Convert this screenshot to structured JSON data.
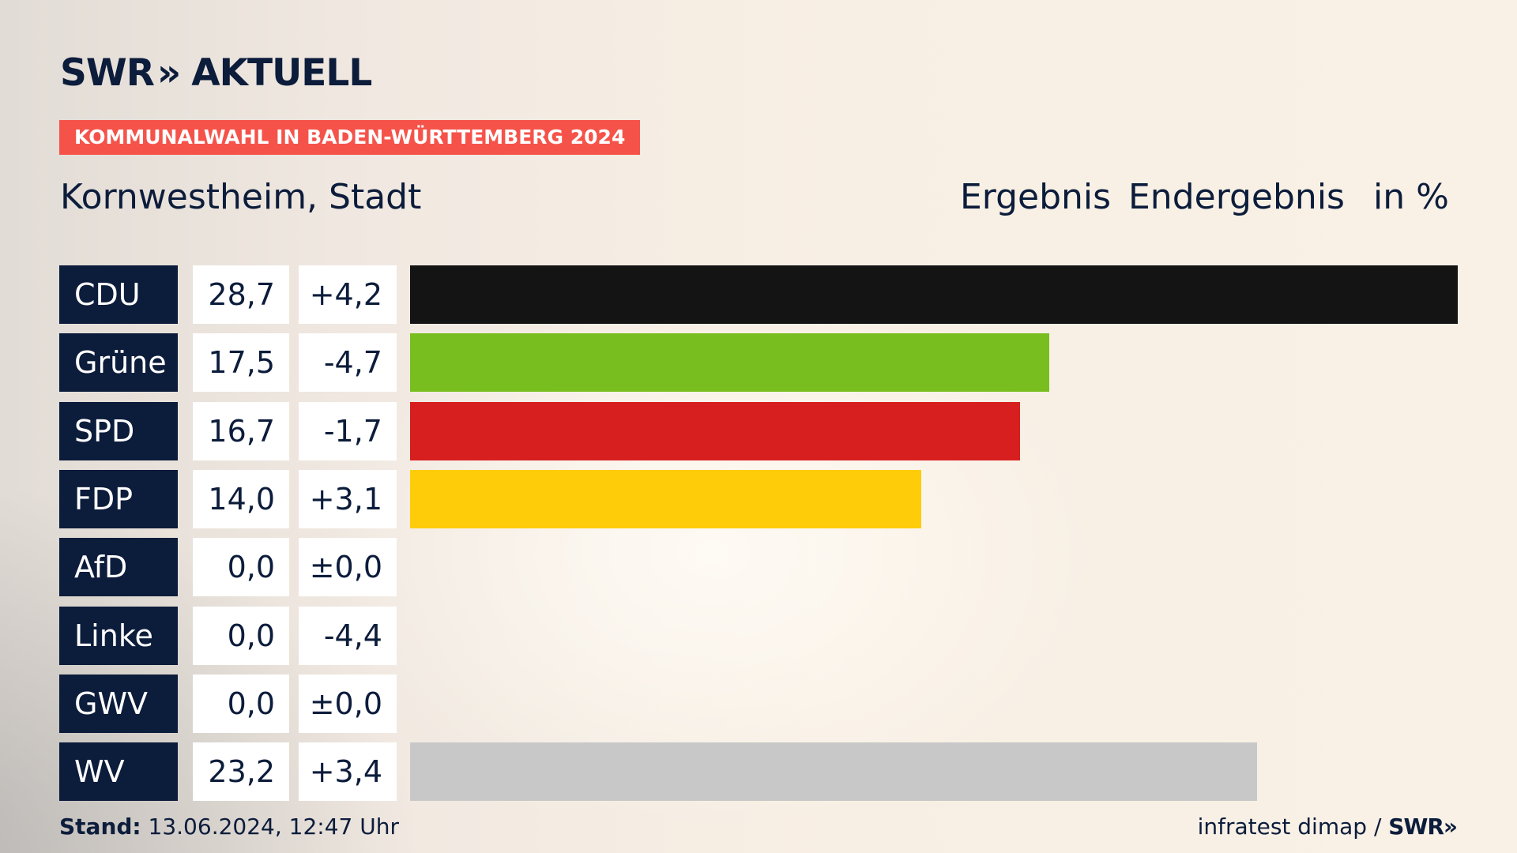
{
  "brand": {
    "logo_left": "SWR",
    "logo_chevrons": "»",
    "logo_right": "AKTUELL"
  },
  "kicker": "KOMMUNALWAHL IN BADEN-WÜRTTEMBERG 2024",
  "region": "Kornwestheim, Stadt",
  "header": {
    "result": "Ergebnis",
    "status": "Endergebnis",
    "unit": "in %"
  },
  "chart_data": {
    "type": "bar",
    "orientation": "horizontal",
    "title": "Kornwestheim, Stadt",
    "unit": "%",
    "categories": [
      "CDU",
      "Grüne",
      "SPD",
      "FDP",
      "AfD",
      "Linke",
      "GWV",
      "WV"
    ],
    "values": [
      28.7,
      17.5,
      16.7,
      14.0,
      0.0,
      0.0,
      0.0,
      23.2
    ],
    "values_text": [
      "28,7",
      "17,5",
      "16,7",
      "14,0",
      "0,0",
      "0,0",
      "0,0",
      "23,2"
    ],
    "diff_text": [
      "+4,2",
      "-4,7",
      "-1,7",
      "+3,1",
      "±0,0",
      "-4,4",
      "±0,0",
      "+3,4"
    ],
    "colors": [
      "#141414",
      "#78be1e",
      "#d71f1f",
      "#ffcc09",
      "#009ee0",
      "#be3075",
      "#f28f00",
      "#c8c8c8"
    ],
    "xlim": [
      0,
      28.7
    ]
  },
  "footer": {
    "stand_label": "Stand:",
    "stand_value": "13.06.2024, 12:47 Uhr",
    "source": "infratest dimap /",
    "source_brand": "SWR»"
  }
}
